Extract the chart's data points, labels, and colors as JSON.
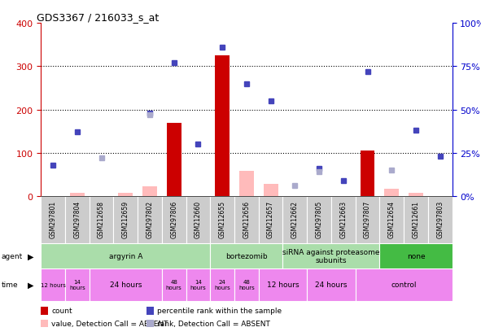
{
  "title": "GDS3367 / 216033_s_at",
  "samples": [
    "GSM297801",
    "GSM297804",
    "GSM212658",
    "GSM212659",
    "GSM297802",
    "GSM297806",
    "GSM212660",
    "GSM212655",
    "GSM212656",
    "GSM212657",
    "GSM212662",
    "GSM297805",
    "GSM212663",
    "GSM297807",
    "GSM212654",
    "GSM212661",
    "GSM297803"
  ],
  "count_values": [
    null,
    null,
    null,
    null,
    null,
    170,
    null,
    325,
    null,
    null,
    null,
    null,
    null,
    105,
    null,
    null,
    null
  ],
  "count_absent_values": [
    null,
    8,
    null,
    8,
    22,
    null,
    null,
    null,
    58,
    28,
    null,
    null,
    null,
    null,
    18,
    8,
    null
  ],
  "rank_values": [
    18,
    37,
    null,
    null,
    48,
    77,
    30,
    86,
    65,
    55,
    null,
    16,
    9,
    72,
    null,
    38,
    23
  ],
  "rank_absent_values": [
    null,
    null,
    22,
    null,
    47,
    null,
    null,
    null,
    null,
    null,
    6,
    14,
    null,
    null,
    15,
    null,
    null
  ],
  "ylim_left": [
    0,
    400
  ],
  "ylim_right": [
    0,
    100
  ],
  "yticks_left": [
    0,
    100,
    200,
    300,
    400
  ],
  "ytick_labels_left": [
    "0",
    "100",
    "200",
    "300",
    "400"
  ],
  "yticks_right": [
    0,
    25,
    50,
    75,
    100
  ],
  "ytick_labels_right": [
    "0%",
    "25%",
    "50%",
    "75%",
    "100%"
  ],
  "bar_color_count": "#cc0000",
  "bar_color_count_absent": "#ffbbbb",
  "marker_color_rank": "#4444bb",
  "marker_color_rank_absent": "#aaaacc",
  "plot_bg_color": "#ffffff",
  "axis_left_color": "#cc0000",
  "axis_right_color": "#0000cc",
  "sample_bg_color": "#cccccc",
  "agent_bg_light": "#aaddaa",
  "agent_bg_dark": "#44bb44",
  "time_bg_color": "#ee88ee"
}
